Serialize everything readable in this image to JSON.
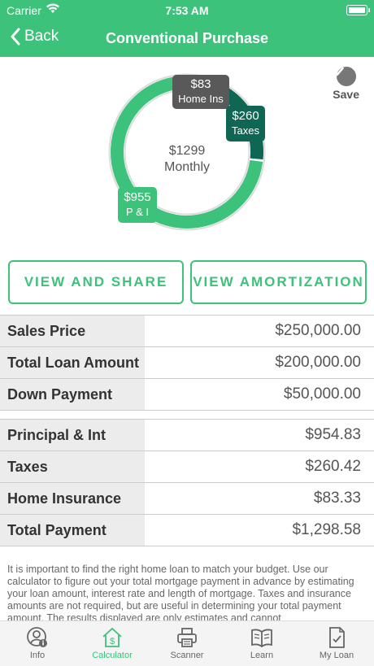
{
  "status": {
    "carrier": "Carrier",
    "time": "7:53 AM"
  },
  "nav": {
    "back_label": "Back",
    "title": "Conventional Purchase"
  },
  "chart_data": {
    "type": "pie",
    "style": "donut",
    "center_value": "$1299",
    "center_label": "Monthly",
    "series": [
      {
        "value_label": "$955",
        "short_label": "P & I",
        "value": 954.83,
        "color": "#3cc27a"
      },
      {
        "value_label": "$260",
        "short_label": "Taxes",
        "value": 260.42,
        "color": "#0e6653"
      },
      {
        "value_label": "$83",
        "short_label": "Home Ins",
        "value": 83.33,
        "color": "#595959"
      }
    ]
  },
  "save_label": "Save",
  "buttons": {
    "share": "VIEW AND SHARE",
    "amortization": "VIEW AMORTIZATION"
  },
  "loan_rows": [
    {
      "label": "Sales Price",
      "value": "$250,000.00"
    },
    {
      "label": "Total Loan Amount",
      "value": "$200,000.00"
    },
    {
      "label": "Down Payment",
      "value": "$50,000.00"
    }
  ],
  "payment_rows": [
    {
      "label": "Principal & Int",
      "value": "$954.83"
    },
    {
      "label": "Taxes",
      "value": "$260.42"
    },
    {
      "label": "Home Insurance",
      "value": "$83.33"
    },
    {
      "label": "Total Payment",
      "value": "$1,298.58"
    }
  ],
  "disclaimer": "It is important to find the right home loan to match your budget. Use our calculator to figure out your total mortgage payment in advance by estimating your loan amount, interest rate and length of mortgage. Taxes and insurance amounts are not required, but are useful in determining your total payment amount. The results displayed are only estimates and cannot",
  "tabs": [
    {
      "label": "Info",
      "icon": "person-info-icon"
    },
    {
      "label": "Calculator",
      "icon": "house-dollar-icon",
      "active": true
    },
    {
      "label": "Scanner",
      "icon": "printer-icon"
    },
    {
      "label": "Learn",
      "icon": "book-icon"
    },
    {
      "label": "My Loan",
      "icon": "document-check-icon"
    }
  ]
}
